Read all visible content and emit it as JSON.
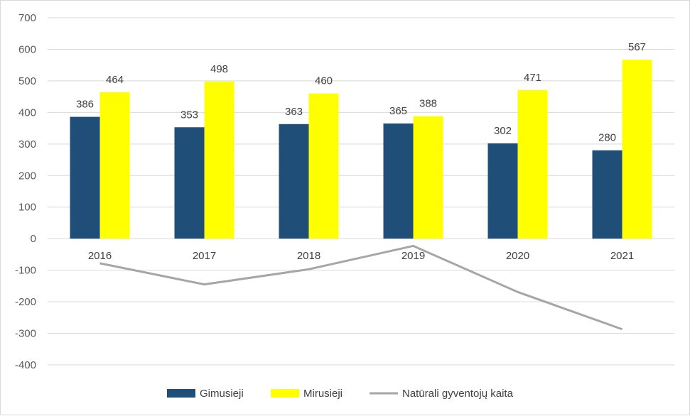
{
  "chart_data": {
    "type": "bar",
    "categories": [
      "2016",
      "2017",
      "2018",
      "2019",
      "2020",
      "2021"
    ],
    "series": [
      {
        "name": "Gimusieji",
        "kind": "bar",
        "color": "#1f4e79",
        "values": [
          386,
          353,
          363,
          365,
          302,
          280
        ]
      },
      {
        "name": "Mirusieji",
        "kind": "bar",
        "color": "#ffff00",
        "values": [
          464,
          498,
          460,
          388,
          471,
          567
        ]
      },
      {
        "name": "Natūrali gyventojų kaita",
        "kind": "line",
        "color": "#a6a6a6",
        "values": [
          -78,
          -145,
          -97,
          -23,
          -169,
          -287
        ]
      }
    ],
    "ylim": [
      -400,
      700
    ],
    "yticks": [
      "700",
      "600",
      "500",
      "400",
      "300",
      "200",
      "100",
      "0",
      "-100",
      "-200",
      "-300",
      "-400"
    ],
    "grid": true,
    "legend_position": "bottom",
    "data_labels_on": [
      "Gimusieji",
      "Mirusieji"
    ]
  }
}
